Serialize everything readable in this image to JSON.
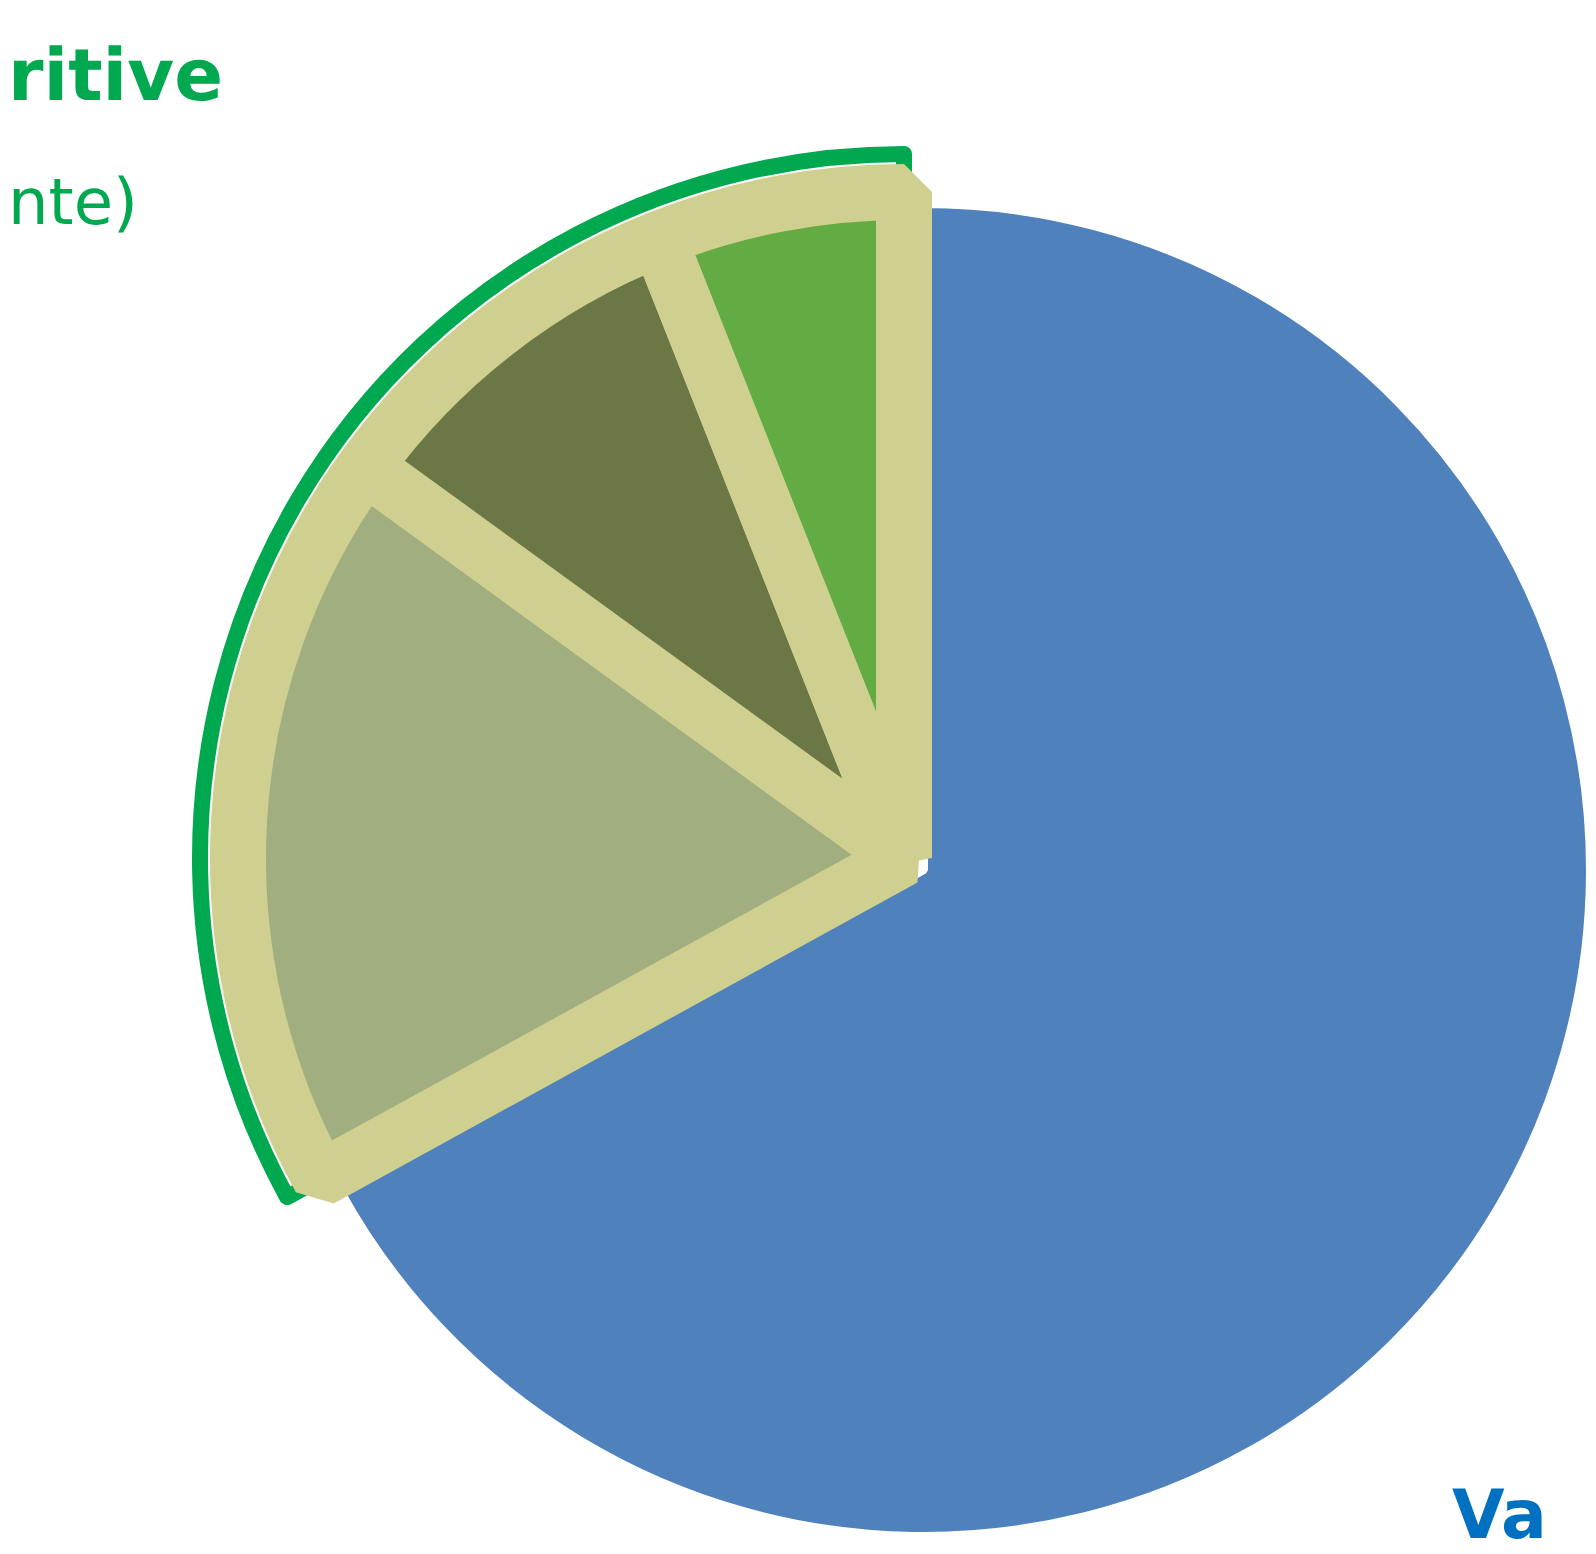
{
  "chart_data": {
    "type": "pie",
    "categories": [
      null,
      null,
      null,
      null
    ],
    "values": [
      67,
      18,
      9,
      6
    ],
    "colors": [
      "#4f81bd",
      "#a0ae80",
      "#6b7846",
      "#63ab43"
    ],
    "annotations": [
      "ritive",
      "nte)",
      "Va"
    ]
  }
}
